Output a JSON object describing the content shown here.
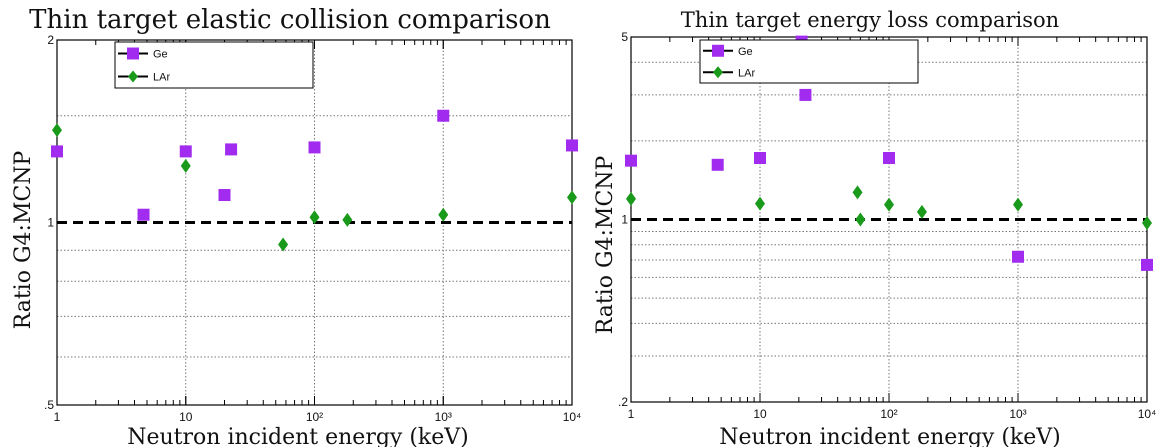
{
  "colors": {
    "ge": "#a12cf0",
    "lar": "#1a9a1a",
    "frame": "#000000",
    "grid": "#777777"
  },
  "chart_data": [
    {
      "type": "scatter",
      "title": "Thin target elastic collision comparison",
      "xlabel": "Neutron incident energy (keV)",
      "ylabel": "Ratio G4:MCNP",
      "xscale": "log",
      "yscale": "log",
      "xlim": [
        1,
        10000
      ],
      "ylim": [
        0.5,
        2
      ],
      "x_tick_labels": [
        "1",
        "10",
        "10²",
        "10³",
        "10⁴"
      ],
      "y_tick_labels": [
        ".5",
        "1",
        "2"
      ],
      "reference_line": 1,
      "grid": true,
      "legend": "top-left",
      "series": [
        {
          "name": "Ge",
          "marker": "square",
          "x": [
            1,
            4.7,
            10,
            20,
            22.5,
            100,
            1000,
            10000
          ],
          "y": [
            1.31,
            1.03,
            1.31,
            1.11,
            1.32,
            1.33,
            1.5,
            1.34
          ]
        },
        {
          "name": "LAr",
          "marker": "diamond",
          "x": [
            1,
            10,
            57,
            100,
            180,
            1000,
            10000
          ],
          "y": [
            1.42,
            1.24,
            0.92,
            1.02,
            1.01,
            1.03,
            1.1
          ]
        }
      ]
    },
    {
      "type": "scatter",
      "title": "Thin target energy loss comparison",
      "xlabel": "Neutron incident energy (keV)",
      "ylabel": "Ratio G4:MCNP",
      "xscale": "log",
      "yscale": "log",
      "xlim": [
        1,
        10000
      ],
      "ylim": [
        0.2,
        5
      ],
      "x_tick_labels": [
        "1",
        "10",
        "10²",
        "10³",
        "10⁴"
      ],
      "y_tick_labels": [
        ".2",
        "1",
        "5"
      ],
      "reference_line": 1,
      "grid": true,
      "legend": "top-center",
      "series": [
        {
          "name": "Ge",
          "marker": "square",
          "x": [
            1,
            4.7,
            10,
            21,
            22.5,
            100,
            1000,
            10000
          ],
          "y": [
            1.68,
            1.62,
            1.72,
            4.8,
            3.0,
            1.72,
            0.72,
            0.67
          ]
        },
        {
          "name": "LAr",
          "marker": "diamond",
          "x": [
            1,
            10,
            57,
            60,
            100,
            180,
            1000,
            10000
          ],
          "y": [
            1.2,
            1.15,
            1.27,
            1.0,
            1.14,
            1.07,
            1.14,
            0.97
          ]
        }
      ]
    }
  ]
}
